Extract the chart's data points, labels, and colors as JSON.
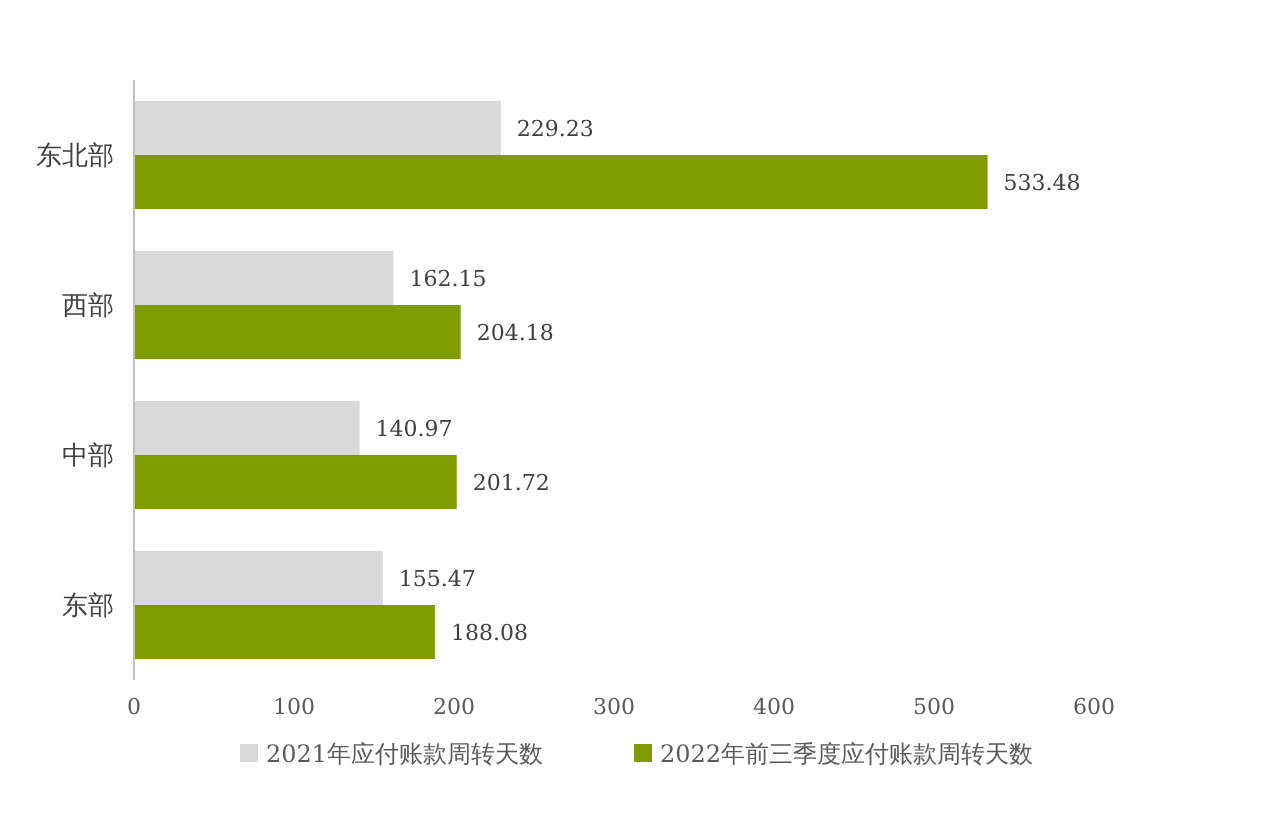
{
  "chart_data": {
    "type": "bar",
    "orientation": "horizontal",
    "categories": [
      "东北部",
      "西部",
      "中部",
      "东部"
    ],
    "series": [
      {
        "name": "2021年应付账款周转天数",
        "color": "#d9d9d9",
        "values": [
          229.23,
          162.15,
          140.97,
          155.47
        ]
      },
      {
        "name": "2022年前三季度应付账款周转天数",
        "color": "#7f9b00",
        "values": [
          533.48,
          204.18,
          201.72,
          188.08
        ]
      }
    ],
    "xlim": [
      0,
      600
    ],
    "xticks": [
      0,
      100,
      200,
      300,
      400,
      500,
      600
    ],
    "data_labels": true,
    "legend": "bottom",
    "grid": false
  }
}
